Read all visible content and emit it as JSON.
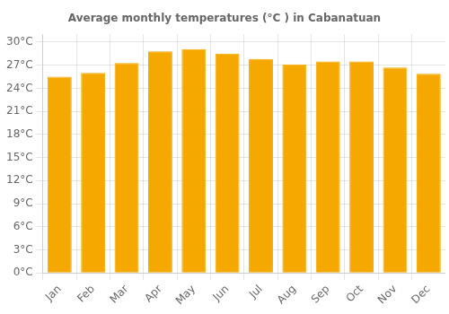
{
  "chart_data": {
    "type": "bar",
    "title": "Average monthly temperatures (°C ) in Cabanatuan",
    "categories": [
      "Jan",
      "Feb",
      "Mar",
      "Apr",
      "May",
      "Jun",
      "Jul",
      "Aug",
      "Sep",
      "Oct",
      "Nov",
      "Dec"
    ],
    "values": [
      25.5,
      26.0,
      27.3,
      28.8,
      29.1,
      28.5,
      27.8,
      27.1,
      27.5,
      27.5,
      26.7,
      25.9
    ],
    "color": "#F5A800",
    "ylim": [
      0,
      31
    ],
    "yticks": [
      {
        "value": 0,
        "label": "0°C"
      },
      {
        "value": 3,
        "label": "3°C"
      },
      {
        "value": 6,
        "label": "6°C"
      },
      {
        "value": 9,
        "label": "9°C"
      },
      {
        "value": 12,
        "label": "12°C"
      },
      {
        "value": 15,
        "label": "15°C"
      },
      {
        "value": 18,
        "label": "18°C"
      },
      {
        "value": 21,
        "label": "21°C"
      },
      {
        "value": 24,
        "label": "24°C"
      },
      {
        "value": 27,
        "label": "27°C"
      },
      {
        "value": 30,
        "label": "30°C"
      }
    ],
    "grid": true
  }
}
